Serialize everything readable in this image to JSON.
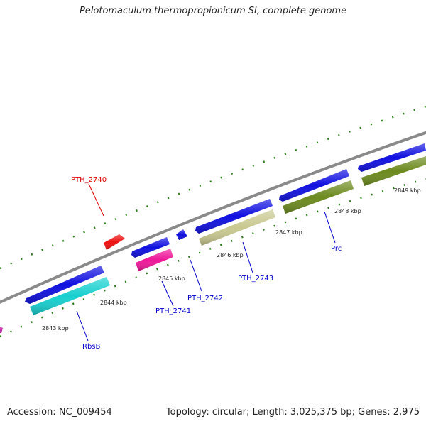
{
  "title": "Pelotomaculum thermopropionicum SI, complete genome",
  "footer": {
    "accession": "Accession: NC_009454",
    "topology": "Topology: circular; Length: 3,025,375 bp; Genes: 2,975"
  },
  "colors": {
    "backbone": "#8a8a8a",
    "blue_gene": "#1010e0",
    "tick": "#2e7d1e",
    "label_red": "#e00000",
    "label_blue": "#0000cc"
  },
  "position_labels": [
    "2843 kbp",
    "2844 kbp",
    "2845 kbp",
    "2846 kbp",
    "2847 kbp",
    "2848 kbp",
    "2849 kbp"
  ],
  "gene_labels": [
    {
      "text": "PTH_2740",
      "color": "red"
    },
    {
      "text": "RbsB",
      "color": "blue"
    },
    {
      "text": "PTH_2741",
      "color": "blue"
    },
    {
      "text": "PTH_2742",
      "color": "blue"
    },
    {
      "text": "PTH_2743",
      "color": "blue"
    },
    {
      "text": "Prc",
      "color": "blue"
    }
  ]
}
